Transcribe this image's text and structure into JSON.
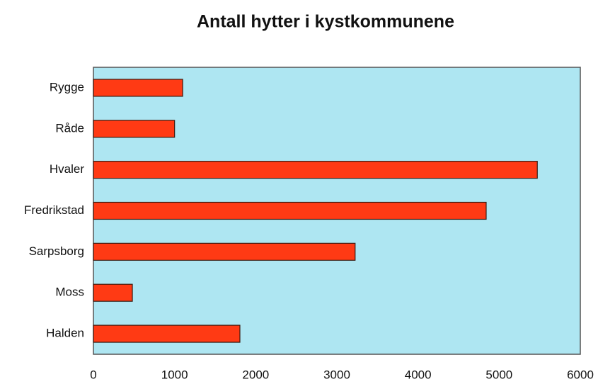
{
  "chart_data": {
    "type": "bar",
    "orientation": "horizontal",
    "title": "Antall hytter i kystkommunene",
    "categories": [
      "Rygge",
      "Råde",
      "Hvaler",
      "Fredrikstad",
      "Sarpsborg",
      "Moss",
      "Halden"
    ],
    "values": [
      1100,
      1000,
      5470,
      4840,
      3225,
      480,
      1805
    ],
    "color": "#ff3a14",
    "background": "#aee6f2",
    "xlim": [
      0,
      6000
    ],
    "xticks": [
      0,
      1000,
      2000,
      3000,
      4000,
      5000,
      6000
    ],
    "grid": false
  }
}
